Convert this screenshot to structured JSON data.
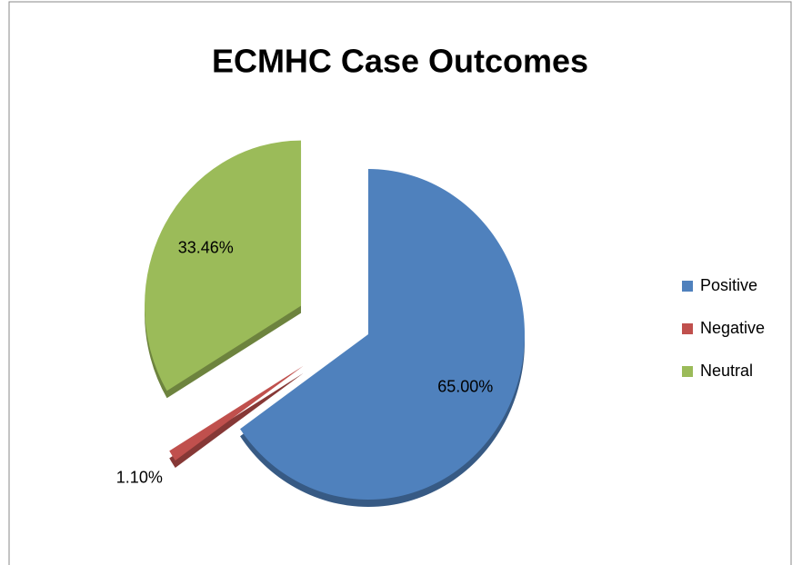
{
  "chart_data": {
    "type": "pie",
    "title": "ECMHC Case Outcomes",
    "categories": [
      "Positive",
      "Negative",
      "Neutral"
    ],
    "values": [
      65.0,
      1.1,
      33.46
    ],
    "value_labels": [
      "65.00%",
      "1.10%",
      "33.46%"
    ],
    "colors": [
      "#4f81bd",
      "#c0504d",
      "#9bbb59"
    ],
    "legend": "right"
  }
}
